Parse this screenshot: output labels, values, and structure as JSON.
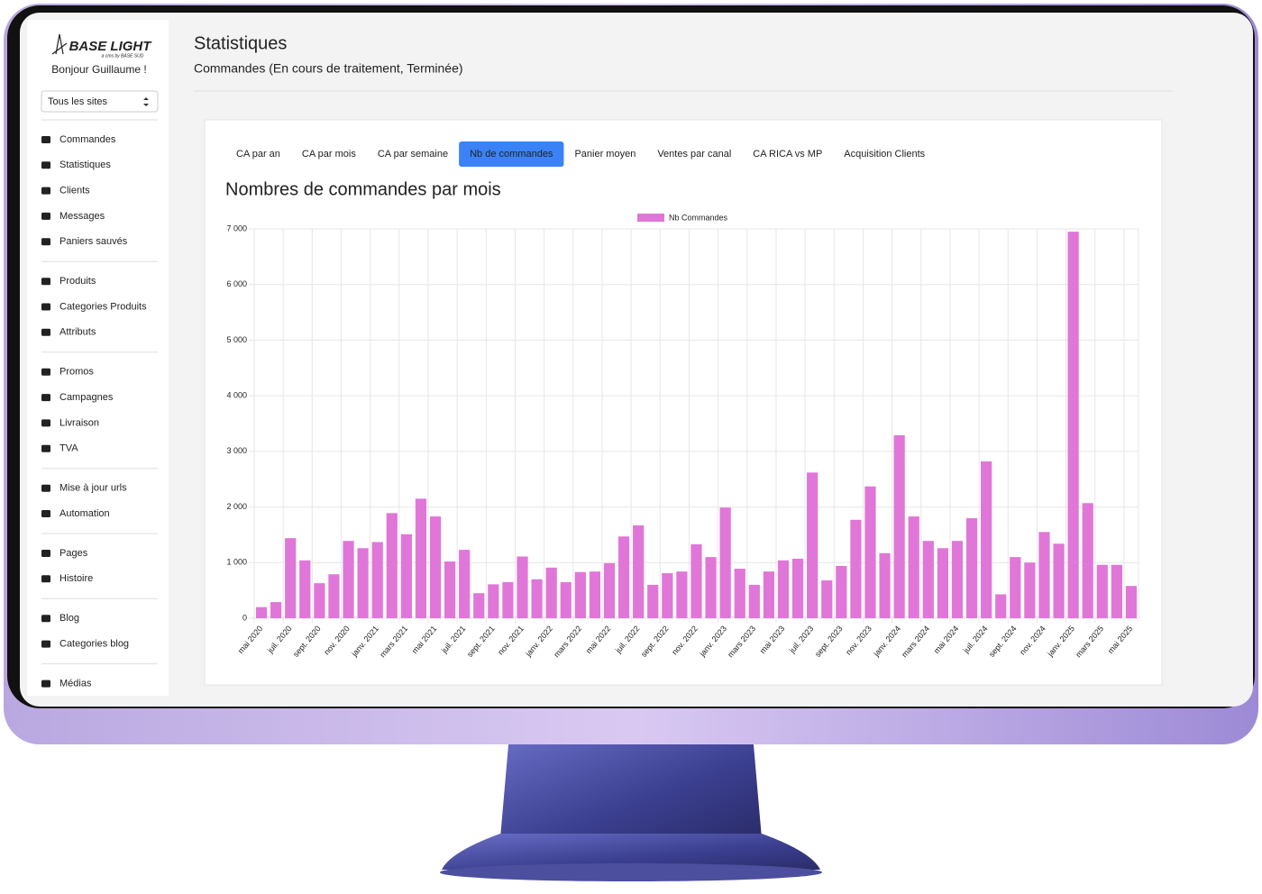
{
  "sidebar": {
    "logo": "BASE LIGHT",
    "logo_tagline": "a cms by BASE SUD",
    "greeting": "Bonjour Guillaume !",
    "site_select": "Tous les sites",
    "menu": [
      [
        "Commandes",
        "Statistiques",
        "Clients",
        "Messages",
        "Paniers sauvés"
      ],
      [
        "Produits",
        "Categories Produits",
        "Attributs"
      ],
      [
        "Promos",
        "Campagnes",
        "Livraison",
        "TVA"
      ],
      [
        "Mise à jour urls",
        "Automation"
      ],
      [
        "Pages",
        "Histoire"
      ],
      [
        "Blog",
        "Categories blog"
      ],
      [
        "Médias"
      ]
    ]
  },
  "header": {
    "title": "Statistiques",
    "subtitle": "Commandes (En cours de traitement, Terminée)"
  },
  "tabs": {
    "items": [
      "CA par an",
      "CA par mois",
      "CA par semaine",
      "Nb de commandes",
      "Panier moyen",
      "Ventes par canal",
      "CA RICA vs MP",
      "Acquisition Clients"
    ],
    "active": 3
  },
  "chart_data": {
    "type": "bar",
    "title": "Nombres de commandes par mois",
    "categories": [
      "mai 2020",
      null,
      "juil. 2020",
      null,
      "sept. 2020",
      null,
      "nov. 2020",
      null,
      "janv. 2021",
      null,
      "mars 2021",
      null,
      "mai 2021",
      null,
      "juil. 2021",
      null,
      "sept. 2021",
      null,
      "nov. 2021",
      null,
      "janv. 2022",
      null,
      "mars 2022",
      null,
      "mai 2022",
      null,
      "juil. 2022",
      null,
      "sept. 2022",
      null,
      "nov. 2022",
      null,
      "janv. 2023",
      null,
      "mars 2023",
      null,
      "mai 2023",
      null,
      "juil. 2023",
      null,
      "sept. 2023",
      null,
      "nov. 2023",
      null,
      "janv. 2024",
      null,
      "mars 2024",
      null,
      "mai 2024",
      null,
      "juil. 2024",
      null,
      "sept. 2024",
      null,
      "nov. 2024",
      null,
      "janv. 2025",
      null,
      "mars 2025",
      null,
      "mai 2025"
    ],
    "series": [
      {
        "name": "Nb Commandes",
        "color": "#e077d8",
        "values": [
          200,
          290,
          1440,
          1040,
          630,
          790,
          1390,
          1260,
          1370,
          1890,
          1510,
          2150,
          1830,
          1020,
          1230,
          450,
          610,
          650,
          1110,
          700,
          910,
          650,
          830,
          840,
          990,
          1470,
          1670,
          600,
          810,
          840,
          1330,
          1100,
          1990,
          890,
          600,
          840,
          1040,
          1070,
          2620,
          680,
          940,
          1770,
          2370,
          1170,
          3290,
          1830,
          1390,
          1260,
          1390,
          1800,
          2820,
          430,
          1100,
          1000,
          1550,
          1340,
          6950,
          2070,
          960,
          960,
          580
        ]
      }
    ],
    "ylim": [
      0,
      7000
    ],
    "yticks": [
      0,
      {
        "value": 1000,
        "label": "1 000"
      },
      {
        "value": 2000,
        "label": "2 000"
      },
      {
        "value": 3000,
        "label": "3 000"
      },
      {
        "value": 4000,
        "label": "4 000"
      },
      {
        "value": 5000,
        "label": "5 000"
      },
      {
        "value": 6000,
        "label": "6 000"
      },
      {
        "value": 7000,
        "label": "7 000"
      }
    ],
    "grid": true,
    "legend": "top"
  }
}
